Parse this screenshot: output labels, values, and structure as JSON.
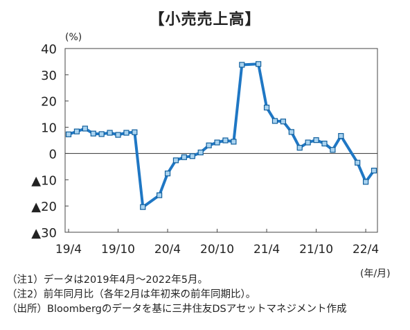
{
  "title": "【小売売上高】",
  "y_unit": "(%)",
  "x_unit": "(年/月)",
  "notes": [
    "（注1）データは2019年4月～2022年5月。",
    "（注2）前年同月比（各年2月は年初来の前年同期比）。",
    "（出所）Bloombergのデータを基に三井住友DSアセットマネジメント作成"
  ],
  "chart_data": {
    "type": "line",
    "title": "【小売売上高】",
    "ylabel": "(%)",
    "xlabel": "(年/月)",
    "ylim": [
      -30,
      40
    ],
    "yticks": [
      40,
      30,
      20,
      10,
      0,
      -10,
      -20,
      -30
    ],
    "ytick_labels": [
      "40",
      "30",
      "20",
      "10",
      "0",
      "▲10",
      "▲20",
      "▲30"
    ],
    "xtick_labels": [
      "19/4",
      "19/10",
      "20/4",
      "20/10",
      "21/4",
      "21/10",
      "22/4"
    ],
    "xtick_positions": [
      0,
      6,
      12,
      18,
      24,
      30,
      36
    ],
    "grid": false,
    "line_color": "#1f77c4",
    "series": [
      {
        "x": [
          "2019/4",
          "2019/5",
          "2019/6",
          "2019/7",
          "2019/8",
          "2019/9",
          "2019/10",
          "2019/11",
          "2019/12",
          "2020/1",
          "2020/3",
          "2020/4",
          "2020/5",
          "2020/6",
          "2020/7",
          "2020/8",
          "2020/9",
          "2020/10",
          "2020/11",
          "2020/12",
          "2021/1",
          "2021/3",
          "2021/4",
          "2021/5",
          "2021/6",
          "2021/7",
          "2021/8",
          "2021/9",
          "2021/10",
          "2021/11",
          "2021/12",
          "2022/1",
          "2022/3",
          "2022/4",
          "2022/5"
        ],
        "idx": [
          0,
          1,
          2,
          3,
          4,
          5,
          6,
          7,
          8,
          9,
          11,
          12,
          13,
          14,
          15,
          16,
          17,
          18,
          19,
          20,
          21,
          23,
          24,
          25,
          26,
          27,
          28,
          29,
          30,
          31,
          32,
          33,
          35,
          36,
          37
        ],
        "values": [
          7.3,
          8.4,
          9.5,
          7.6,
          7.4,
          7.9,
          7.1,
          7.9,
          8.1,
          -20.4,
          -15.9,
          -7.6,
          -2.6,
          -1.4,
          -1.0,
          0.4,
          3.1,
          4.2,
          5.0,
          4.5,
          33.8,
          34.1,
          17.5,
          12.4,
          12.2,
          8.2,
          2.2,
          4.2,
          5.1,
          3.8,
          1.4,
          6.7,
          -3.5,
          -10.8,
          -6.5
        ]
      }
    ]
  }
}
